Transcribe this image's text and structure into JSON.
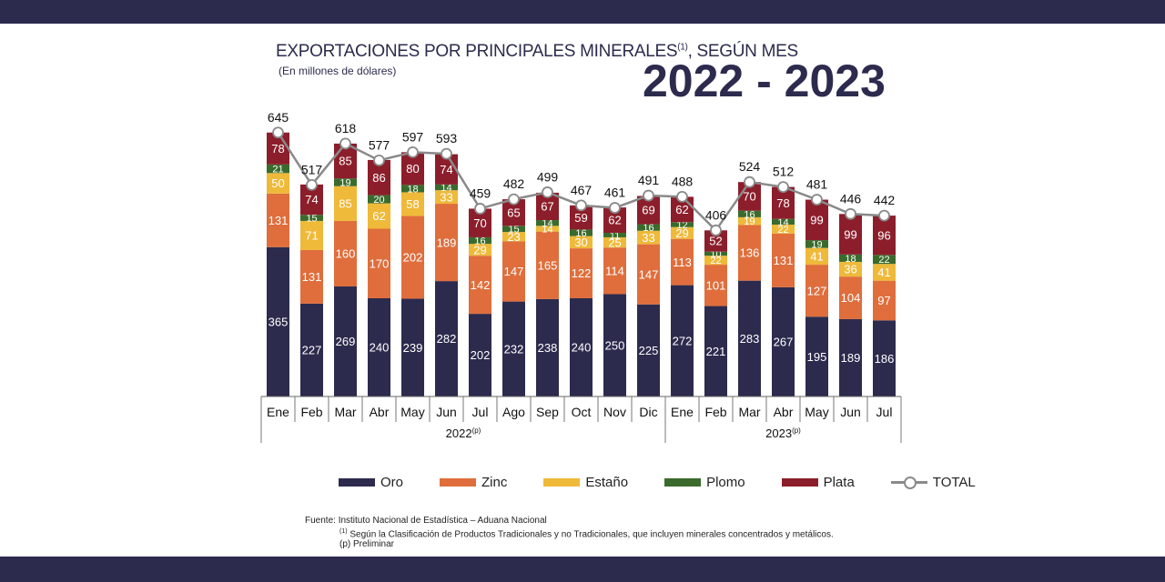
{
  "title": {
    "main": "EXPORTACIONES POR PRINCIPALES MINERALES",
    "sup": "(1)",
    "suffix": ", SEGÚN MES",
    "subtitle": "(En millones de dólares)",
    "years": "2022 - 2023"
  },
  "colors": {
    "band": "#2c2b4e",
    "Oro": "#2c2b4e",
    "Zinc": "#df6e3c",
    "Estaño": "#efb939",
    "Plomo": "#3a6b2c",
    "Plata": "#8c1e2b",
    "TOTAL": "#8a8a8a"
  },
  "legend": [
    {
      "name": "Oro",
      "color": "#2c2b4e"
    },
    {
      "name": "Zinc",
      "color": "#df6e3c"
    },
    {
      "name": "Estaño",
      "color": "#efb939"
    },
    {
      "name": "Plomo",
      "color": "#3a6b2c"
    },
    {
      "name": "Plata",
      "color": "#8c1e2b"
    },
    {
      "name": "TOTAL",
      "color": "#8a8a8a"
    }
  ],
  "chart_data": {
    "type": "bar",
    "stacked": true,
    "title": "EXPORTACIONES POR PRINCIPALES MINERALES(1), SEGÚN MES 2022 - 2023",
    "ylabel": "En millones de dólares",
    "ylim": [
      0,
      700
    ],
    "categories": [
      "Ene",
      "Feb",
      "Mar",
      "Abr",
      "May",
      "Jun",
      "Jul",
      "Ago",
      "Sep",
      "Oct",
      "Nov",
      "Dic",
      "Ene",
      "Feb",
      "Mar",
      "Abr",
      "May",
      "Jun",
      "Jul"
    ],
    "groups": [
      {
        "label": "2022",
        "sup": "(p)",
        "count": 12
      },
      {
        "label": "2023",
        "sup": "(p)",
        "count": 7
      }
    ],
    "series": [
      {
        "name": "Oro",
        "values": [
          365,
          227,
          269,
          240,
          239,
          282,
          202,
          232,
          238,
          240,
          250,
          225,
          272,
          221,
          283,
          267,
          195,
          189,
          186
        ]
      },
      {
        "name": "Zinc",
        "values": [
          131,
          131,
          160,
          170,
          202,
          189,
          142,
          147,
          165,
          122,
          114,
          147,
          113,
          101,
          136,
          131,
          127,
          104,
          97
        ]
      },
      {
        "name": "Estaño",
        "values": [
          50,
          71,
          85,
          62,
          58,
          33,
          29,
          23,
          14,
          30,
          25,
          33,
          29,
          22,
          19,
          22,
          41,
          36,
          41
        ]
      },
      {
        "name": "Plomo",
        "values": [
          21,
          15,
          19,
          20,
          18,
          14,
          16,
          15,
          14,
          16,
          11,
          16,
          12,
          10,
          16,
          14,
          19,
          18,
          22
        ]
      },
      {
        "name": "Plata",
        "values": [
          78,
          74,
          85,
          86,
          80,
          74,
          70,
          65,
          67,
          59,
          62,
          69,
          62,
          52,
          70,
          78,
          99,
          99,
          96
        ]
      }
    ],
    "total": {
      "name": "TOTAL",
      "values": [
        645,
        517,
        618,
        577,
        597,
        593,
        459,
        482,
        499,
        467,
        461,
        491,
        488,
        406,
        524,
        512,
        481,
        446,
        442
      ]
    },
    "legend_position": "bottom"
  },
  "footnotes": {
    "source": "Fuente: Instituto Nacional de Estadística – Aduana Nacional",
    "note_sup": "(1)",
    "note": " Según la Clasificación de Productos Tradicionales y no Tradicionales, que incluyen minerales concentrados y metálicos.",
    "prelim": "(p) Preliminar"
  }
}
